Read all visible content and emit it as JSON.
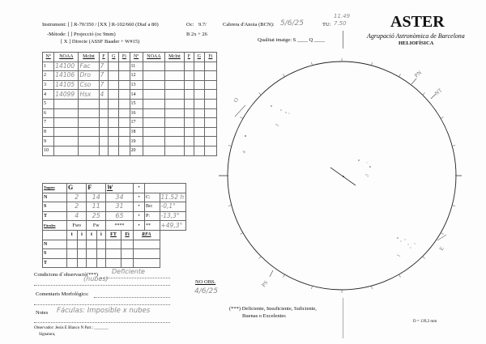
{
  "header": {
    "instrument": "Instrument:  [  ] R-70/350 / [XX ] R-102/660 (Diaf a 80)",
    "oc_label": "Oc:",
    "oc_value": "9.7/",
    "method": "-Mètode:   [  ]  Projecció  (oc 9mm)",
    "method_direct": "[ X ]  Directe (ASSF Baader + W#15)",
    "barlow": "B 2x + 26",
    "location_label": "Cabrera d'Anoia (BCN):",
    "date": "5/6/25",
    "tu_label": "TU:",
    "tu_value_1": "11.49",
    "tu_value_2": "7.50",
    "quality": "Qualitat imatge:  S ____  Q ____"
  },
  "logo": {
    "title": "ASTER",
    "subtitle": "Agrupació Astronòmica de Barcelona",
    "section": "HELIOFÍSICA"
  },
  "groups_table": {
    "headers": [
      "Nº",
      "NOAA",
      "McInt",
      "F",
      "G",
      "Fi",
      "Nº",
      "NOAA",
      "McInt",
      "F",
      "G",
      "Fi"
    ],
    "rows": [
      [
        "1",
        "14100",
        "Fac",
        "7",
        "",
        "",
        "11",
        "",
        "",
        "",
        "",
        ""
      ],
      [
        "2",
        "14106",
        "Dro",
        "7",
        "",
        "",
        "12",
        "",
        "",
        "",
        "",
        ""
      ],
      [
        "3",
        "14105",
        "Cso",
        "7",
        "",
        "",
        "13",
        "",
        "",
        "",
        "",
        ""
      ],
      [
        "4",
        "14099",
        "Hsx",
        "4",
        "",
        "",
        "14",
        "",
        "",
        "",
        "",
        ""
      ],
      [
        "5",
        "",
        "",
        "",
        "",
        "",
        "15",
        "",
        "",
        "",
        "",
        ""
      ],
      [
        "6",
        "",
        "",
        "",
        "",
        "",
        "16",
        "",
        "",
        "",
        "",
        ""
      ],
      [
        "7",
        "",
        "",
        "",
        "",
        "",
        "17",
        "",
        "",
        "",
        "",
        ""
      ],
      [
        "8",
        "",
        "",
        "",
        "",
        "",
        "18",
        "",
        "",
        "",
        "",
        ""
      ],
      [
        "9",
        "",
        "",
        "",
        "",
        "",
        "19",
        "",
        "",
        "",
        "",
        ""
      ],
      [
        "10",
        "",
        "",
        "",
        "",
        "",
        "20",
        "",
        "",
        "",
        "",
        ""
      ]
    ]
  },
  "counts_table": {
    "headers": [
      "Taques",
      "G",
      "F",
      "W",
      "•"
    ],
    "rows": [
      {
        "label": "N",
        "G": "2",
        "F": "14",
        "W": "34",
        "dot": "•",
        "param": "C:",
        "value": "11.52 h"
      },
      {
        "label": "S",
        "G": "2",
        "F": "11",
        "W": "31",
        "dot": "•",
        "param": "Bo:",
        "value": "-0,1°"
      },
      {
        "label": "T",
        "G": "4",
        "F": "25",
        "W": "65",
        "dot": "•",
        "param": "P:",
        "value": "-13,3°"
      }
    ],
    "nt_label": "NT:",
    "nt_value": "+49,3°",
    "faculae_label": "Fàcules",
    "faculae_headers": [
      "Fwo",
      "Fw",
      "****",
      "•",
      "**"
    ],
    "sub_headers": [
      "t",
      "i",
      "t",
      "i",
      "FT",
      "Fi",
      "RFA"
    ],
    "sub_rows": [
      "N",
      "S",
      "T"
    ]
  },
  "notes": {
    "conditions_label": "Condicions d´observació(***)",
    "conditions_value": "Deficiente",
    "conditions_value_2": "(nubes)",
    "comments_label": "Comentaris Morfològics:",
    "notes_label": "Notes",
    "notes_value": "Fáculas: Imposible x nubes",
    "observer": "Observador:  Jesús E Blanco  N  Part.: _______",
    "signature": "Signatura,",
    "no_obs_label": "NO OBS.",
    "no_obs_date": "4/6/25",
    "legend_1": "(***) Deficiente, Insuficiente, Suficiente,",
    "legend_2": "Buenas o Excelentes",
    "diameter": "D = 139,2  mm"
  },
  "disk": {
    "labels": {
      "pn": "PN",
      "nt": "NT",
      "ps": "PS",
      "o": "O",
      "e": "E"
    },
    "groups": [
      "1",
      "2",
      "3",
      "4"
    ]
  }
}
